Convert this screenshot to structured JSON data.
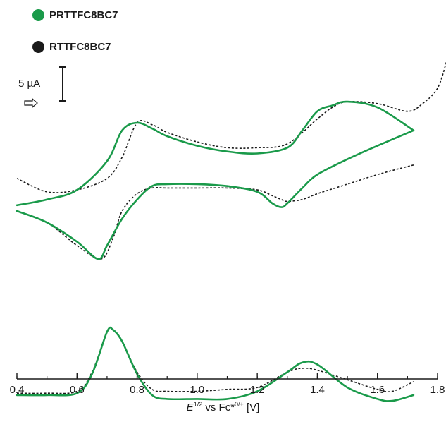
{
  "legend": {
    "items": [
      {
        "label": "PRTTFC8BC7",
        "color": "#1a9a4a"
      },
      {
        "label": "RTTFC8BC7",
        "color": "#1a1a1a"
      }
    ]
  },
  "scale_bar": {
    "label": "5 µA"
  },
  "xlabel": {
    "italic": "E",
    "sup1": "1/2",
    "mid": " vs Fc*",
    "sup2": "0/+",
    "tail": " [V]"
  },
  "chart_data": {
    "type": "line",
    "xlim": [
      0.4,
      1.8
    ],
    "x_ticks": [
      0.4,
      0.6,
      0.8,
      1.0,
      1.2,
      1.4,
      1.6,
      1.8
    ],
    "x_tick_labels": [
      "0.4",
      "0.6",
      "0.8",
      "1.0",
      "1.2",
      "1.4",
      "1.6",
      "1.8"
    ],
    "grid": false,
    "legend_position": "top-left",
    "y_axis_shown": false,
    "series": [
      {
        "name": "PRTTFC8BC7",
        "color": "#1a9a4a",
        "style": "solid",
        "curves": [
          {
            "part": "CV forward scan",
            "x": [
              0.4,
              0.5,
              0.6,
              0.7,
              0.75,
              0.8,
              0.85,
              0.9,
              1.0,
              1.1,
              1.2,
              1.3,
              1.35,
              1.4,
              1.45,
              1.5,
              1.6,
              1.72
            ],
            "y": [
              53.5,
              52,
              49.5,
              42,
              34,
              32,
              33.5,
              35.5,
              38,
              39.5,
              40,
              38.5,
              34,
              29,
              27.5,
              26.5,
              28,
              34
            ]
          },
          {
            "part": "CV reverse scan",
            "x": [
              1.72,
              1.6,
              1.5,
              1.4,
              1.35,
              1.3,
              1.28,
              1.25,
              1.2,
              1.1,
              1.0,
              0.9,
              0.85,
              0.8,
              0.75,
              0.7,
              0.67,
              0.6,
              0.5,
              0.4
            ],
            "y": [
              34,
              38,
              41.5,
              45.5,
              49,
              53,
              54,
              53,
              50,
              48.5,
              48,
              48,
              48.5,
              52,
              57,
              64,
              67.5,
              63,
              58,
              55
            ]
          },
          {
            "part": "DPV",
            "x": [
              0.4,
              0.5,
              0.6,
              0.65,
              0.7,
              0.72,
              0.75,
              0.8,
              0.85,
              0.9,
              1.0,
              1.1,
              1.2,
              1.3,
              1.35,
              1.4,
              1.5,
              1.6,
              1.65,
              1.72
            ],
            "y": [
              103,
              103,
              102.5,
              97.5,
              86.5,
              86,
              89,
              97.5,
              103,
              104,
              104,
              104,
              102,
              97,
              94.5,
              95,
              101,
              104,
              104.5,
              103
            ]
          }
        ]
      },
      {
        "name": "RTTFC8BC7",
        "color": "#1a1a1a",
        "style": "dotted",
        "curves": [
          {
            "part": "CV forward scan",
            "x": [
              0.4,
              0.5,
              0.6,
              0.7,
              0.75,
              0.8,
              0.85,
              0.9,
              1.0,
              1.1,
              1.2,
              1.3,
              1.4,
              1.45,
              1.5,
              1.6,
              1.7,
              1.75,
              1.8,
              1.83
            ],
            "y": [
              46.5,
              50,
              49.5,
              46.5,
              41,
              32,
              32.5,
              34.5,
              37,
              38.5,
              38.5,
              37.5,
              31,
              28,
              26.5,
              27,
              29,
              27,
              23,
              16
            ]
          },
          {
            "part": "CV reverse scan",
            "x": [
              1.72,
              1.6,
              1.5,
              1.4,
              1.35,
              1.3,
              1.28,
              1.25,
              1.2,
              1.1,
              1.0,
              0.9,
              0.85,
              0.8,
              0.75,
              0.72,
              0.68,
              0.6,
              0.5,
              0.4
            ],
            "y": [
              43,
              45.5,
              48,
              50.5,
              52,
              52.5,
              52,
              51,
              49.5,
              49,
              49,
              49,
              49,
              50.5,
              55,
              62,
              67.5,
              64,
              58,
              55
            ]
          },
          {
            "part": "DPV",
            "x": [
              0.4,
              0.5,
              0.6,
              0.65,
              0.7,
              0.72,
              0.75,
              0.8,
              0.85,
              0.9,
              1.0,
              1.1,
              1.2,
              1.3,
              1.35,
              1.4,
              1.5,
              1.6,
              1.65,
              1.72
            ],
            "y": [
              102.5,
              102.5,
              102,
              97,
              86.5,
              86,
              89,
              97,
              101.5,
              102,
              102,
              101.5,
              101,
              97,
              96,
              96.5,
              99,
              101.5,
              102,
              99.5
            ]
          }
        ]
      }
    ]
  }
}
